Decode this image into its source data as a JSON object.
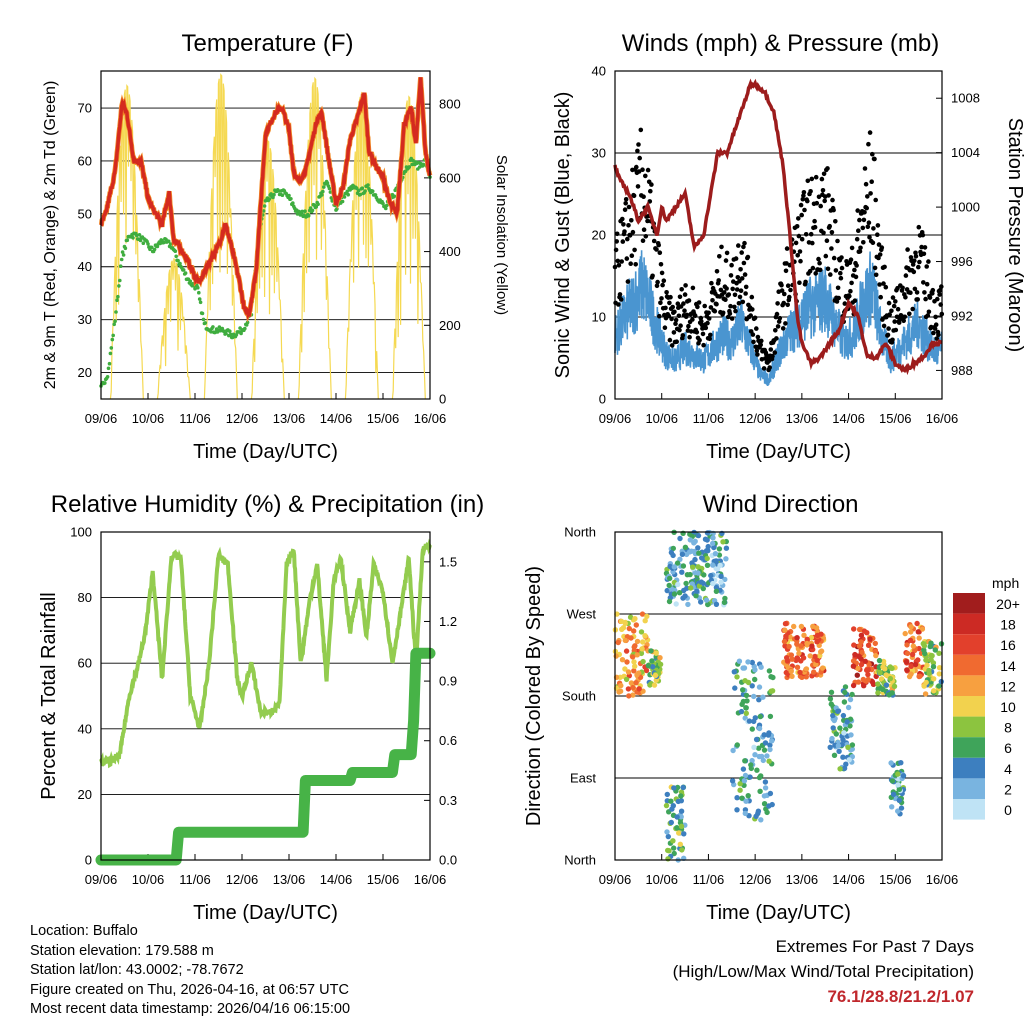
{
  "colors": {
    "temp": "#d42a1f",
    "temp_orange": "#f28c28",
    "dew": "#3fad3f",
    "solar": "#f5d952",
    "gust": "#000000",
    "wind": "#4a95d0",
    "pressure": "#9c1c1c",
    "rh": "#93cc4f",
    "rain": "#47b347",
    "grid": "#000000"
  },
  "chart_data": [
    {
      "id": "temperature",
      "type": "line",
      "title": "Temperature (F)",
      "xlabel": "Time (Day/UTC)",
      "ylabel": "2m & 9m T (Red, Orange) & 2m Td (Green)",
      "y2label": "Solar Insolation (Yellow)",
      "x_ticks": [
        "09/06",
        "10/06",
        "11/06",
        "12/06",
        "13/06",
        "14/06",
        "15/06",
        "16/06"
      ],
      "xlim": [
        0,
        7
      ],
      "ylim": [
        15,
        77
      ],
      "y_ticks": [
        20,
        30,
        40,
        50,
        60,
        70
      ],
      "y2lim": [
        0,
        890
      ],
      "y2_ticks": [
        0,
        200,
        400,
        600,
        800
      ],
      "grid": true,
      "series": [
        {
          "name": "2m T",
          "x": [
            0,
            0.1,
            0.3,
            0.45,
            0.55,
            0.7,
            0.85,
            1.0,
            1.1,
            1.3,
            1.45,
            1.55,
            1.65,
            1.8,
            2.0,
            2.1,
            2.25,
            2.5,
            2.65,
            2.8,
            2.95,
            3.05,
            3.15,
            3.3,
            3.5,
            3.7,
            3.85,
            4.0,
            4.1,
            4.2,
            4.35,
            4.45,
            4.6,
            4.7,
            4.85,
            5.0,
            5.15,
            5.3,
            5.45,
            5.6,
            5.7,
            5.85,
            6.0,
            6.15,
            6.3,
            6.45,
            6.6,
            6.7,
            6.8,
            6.9,
            7.0
          ],
          "values": [
            48,
            50,
            58,
            71,
            69,
            60,
            60,
            53,
            51,
            48,
            54,
            45,
            44,
            42,
            38,
            37,
            40,
            44,
            48,
            43,
            37,
            32,
            31,
            39,
            65,
            69,
            70,
            66,
            58,
            56,
            58,
            62,
            68,
            69,
            60,
            52,
            55,
            64,
            68,
            73,
            62,
            59,
            57,
            52,
            50,
            67,
            70,
            63,
            76,
            62,
            57
          ]
        },
        {
          "name": "2m Td",
          "x": [
            0,
            0.15,
            0.3,
            0.45,
            0.6,
            0.75,
            0.9,
            1.1,
            1.3,
            1.5,
            1.7,
            1.9,
            2.05,
            2.2,
            2.4,
            2.6,
            2.8,
            3.0,
            3.2,
            3.35,
            3.5,
            3.7,
            3.9,
            4.0,
            4.2,
            4.4,
            4.6,
            4.8,
            5.0,
            5.15,
            5.35,
            5.5,
            5.7,
            5.9,
            6.05,
            6.25,
            6.45,
            6.6,
            6.75,
            6.9,
            7.0
          ],
          "values": [
            17,
            20,
            30,
            42,
            46,
            46,
            45,
            43,
            45,
            44,
            40,
            37,
            36,
            29,
            28,
            28,
            27,
            28,
            31,
            46,
            52,
            54,
            54,
            53,
            50,
            50,
            52,
            56,
            51,
            53,
            55,
            54,
            55,
            53,
            51,
            54,
            58,
            60,
            59,
            60,
            57
          ]
        }
      ],
      "solar_peaks_day": [
        0.55,
        1.55,
        2.55,
        3.55,
        4.55,
        5.55,
        6.55
      ],
      "solar_peak_values": [
        850,
        380,
        880,
        700,
        870,
        830,
        820
      ]
    },
    {
      "id": "winds",
      "type": "scatter",
      "title": "Winds (mph) & Pressure (mb)",
      "xlabel": "Time (Day/UTC)",
      "ylabel": "Sonic Wind & Gust (Blue, Black)",
      "y2label": "Station Pressure (Maroon)",
      "x_ticks": [
        "09/06",
        "10/06",
        "11/06",
        "12/06",
        "13/06",
        "14/06",
        "15/06",
        "16/06"
      ],
      "xlim": [
        0,
        7
      ],
      "ylim": [
        0,
        40
      ],
      "y_ticks": [
        0,
        10,
        20,
        30,
        40
      ],
      "y2lim": [
        985.9,
        1010
      ],
      "y2_ticks": [
        988,
        992,
        996,
        1000,
        1004,
        1008
      ],
      "grid": true,
      "wind_envelope": {
        "x": [
          0,
          0.3,
          0.6,
          0.9,
          1.1,
          1.3,
          1.5,
          1.7,
          1.9,
          2.1,
          2.3,
          2.5,
          2.7,
          2.9,
          3.1,
          3.3,
          3.5,
          3.7,
          3.9,
          4.1,
          4.3,
          4.5,
          4.7,
          4.9,
          5.1,
          5.3,
          5.5,
          5.7,
          5.9,
          6.1,
          6.3,
          6.5,
          6.7,
          6.9,
          7.0
        ],
        "values": [
          10,
          14,
          18,
          11,
          7,
          6,
          8,
          7,
          6,
          8,
          10,
          9,
          12,
          8,
          4,
          3,
          7,
          10,
          12,
          14,
          15,
          16,
          12,
          9,
          10,
          15,
          18,
          10,
          6,
          8,
          10,
          12,
          9,
          7,
          8
        ]
      },
      "pressure": {
        "x": [
          0,
          0.1,
          0.3,
          0.5,
          0.7,
          0.9,
          1.0,
          1.1,
          1.3,
          1.5,
          1.7,
          1.9,
          2.05,
          2.2,
          2.4,
          2.6,
          2.8,
          2.9,
          3.0,
          3.2,
          3.4,
          3.6,
          3.8,
          3.9,
          4.0,
          4.2,
          4.4,
          4.6,
          4.8,
          5.0,
          5.2,
          5.4,
          5.6,
          5.8,
          6.0,
          6.2,
          6.4,
          6.6,
          6.8,
          7.0
        ],
        "values": [
          1003,
          1002,
          1001,
          999,
          1000,
          998,
          1000,
          999,
          1000,
          1001,
          997,
          998,
          1001,
          1004,
          1004,
          1006,
          1008,
          1009,
          1009,
          1008.5,
          1007,
          1003,
          996,
          992,
          990,
          988.5,
          989,
          990,
          991,
          993,
          992,
          989,
          989,
          990,
          988.5,
          988,
          988.5,
          989,
          990,
          990
        ]
      }
    },
    {
      "id": "humidity",
      "type": "line",
      "title": "Relative Humidity (%) & Precipitation (in)",
      "xlabel": "Time (Day/UTC)",
      "ylabel": "Percent & Total Rainfall",
      "x_ticks": [
        "09/06",
        "10/06",
        "11/06",
        "12/06",
        "13/06",
        "14/06",
        "15/06",
        "16/06"
      ],
      "xlim": [
        0,
        7
      ],
      "ylim": [
        0,
        100
      ],
      "y_ticks": [
        0,
        20,
        40,
        60,
        80,
        100
      ],
      "y2lim": [
        0,
        1.65
      ],
      "y2_ticks": [
        "0.0",
        "0.3",
        "0.6",
        "0.9",
        "1.2",
        "1.5"
      ],
      "grid": true,
      "series": [
        {
          "name": "Relative Humidity",
          "x": [
            0,
            0.2,
            0.4,
            0.6,
            0.8,
            0.95,
            1.1,
            1.3,
            1.5,
            1.7,
            1.9,
            2.1,
            2.3,
            2.5,
            2.7,
            2.9,
            3.0,
            3.2,
            3.4,
            3.6,
            3.8,
            3.95,
            4.1,
            4.25,
            4.45,
            4.6,
            4.8,
            4.95,
            5.1,
            5.3,
            5.5,
            5.65,
            5.8,
            6.0,
            6.2,
            6.4,
            6.55,
            6.7,
            6.85,
            7.0
          ],
          "values": [
            30,
            30,
            32,
            50,
            60,
            70,
            88,
            55,
            93,
            92,
            50,
            40,
            60,
            93,
            90,
            55,
            50,
            60,
            45,
            45,
            48,
            90,
            95,
            60,
            80,
            90,
            55,
            85,
            92,
            70,
            85,
            68,
            90,
            82,
            60,
            78,
            92,
            60,
            95,
            96
          ]
        },
        {
          "name": "Total Rainfall",
          "x": [
            0,
            1.6,
            1.65,
            4.3,
            4.35,
            5.3,
            5.35,
            6.2,
            6.25,
            6.6,
            6.65,
            6.7,
            7.0
          ],
          "values": [
            0,
            0,
            0.14,
            0.14,
            0.4,
            0.4,
            0.44,
            0.44,
            0.53,
            0.53,
            0.7,
            1.04,
            1.04
          ]
        }
      ]
    },
    {
      "id": "wind_direction",
      "type": "scatter",
      "title": "Wind Direction",
      "xlabel": "Time (Day/UTC)",
      "ylabel": "Direction (Colored By Speed)",
      "x_ticks": [
        "09/06",
        "10/06",
        "11/06",
        "12/06",
        "13/06",
        "14/06",
        "15/06",
        "16/06"
      ],
      "xlim": [
        0,
        7
      ],
      "y_ticks": [
        "North",
        "East",
        "South",
        "West",
        "North"
      ],
      "ylim": [
        0,
        360
      ],
      "grid": true,
      "clusters": [
        {
          "x0": 0.0,
          "x1": 0.7,
          "d0": 180,
          "d1": 270,
          "speed": 12
        },
        {
          "x0": 0.7,
          "x1": 1.0,
          "d0": 190,
          "d1": 230,
          "speed": 8
        },
        {
          "x0": 1.1,
          "x1": 1.5,
          "d0": 0,
          "d1": 80,
          "speed": 6
        },
        {
          "x0": 1.1,
          "x1": 2.4,
          "d0": 280,
          "d1": 360,
          "speed": 4
        },
        {
          "x0": 2.5,
          "x1": 3.4,
          "d0": 40,
          "d1": 220,
          "speed": 4
        },
        {
          "x0": 3.6,
          "x1": 4.5,
          "d0": 200,
          "d1": 260,
          "speed": 14
        },
        {
          "x0": 4.6,
          "x1": 5.1,
          "d0": 100,
          "d1": 190,
          "speed": 4
        },
        {
          "x0": 5.1,
          "x1": 5.6,
          "d0": 190,
          "d1": 255,
          "speed": 16
        },
        {
          "x0": 5.6,
          "x1": 6.0,
          "d0": 180,
          "d1": 220,
          "speed": 8
        },
        {
          "x0": 5.9,
          "x1": 6.2,
          "d0": 50,
          "d1": 110,
          "speed": 4
        },
        {
          "x0": 6.2,
          "x1": 6.6,
          "d0": 200,
          "d1": 260,
          "speed": 14
        },
        {
          "x0": 6.6,
          "x1": 7.0,
          "d0": 180,
          "d1": 240,
          "speed": 8
        }
      ],
      "colorbar_title": "mph",
      "colorbar_labels": [
        "20+",
        "18",
        "16",
        "14",
        "12",
        "10",
        "8",
        "6",
        "4",
        "2",
        "0"
      ],
      "colorbar_colors": [
        "#a11d1d",
        "#cc2a24",
        "#e2402c",
        "#f06a30",
        "#f7a040",
        "#f2d24e",
        "#8cc43f",
        "#3fa45a",
        "#3d7fbf",
        "#79b4e0",
        "#bfe3f5"
      ]
    }
  ],
  "footer": {
    "location": "Location: Buffalo",
    "elevation": "Station elevation: 179.588 m",
    "latlon": "Station lat/lon: 43.0002; -78.7672",
    "created": "Figure created on Thu, 2026-04-16, at 06:57 UTC",
    "recent": "Most recent data timestamp: 2026/04/16 06:15:00"
  },
  "extremes": {
    "title": "Extremes For Past 7 Days",
    "subtitle": "(High/Low/Max Wind/Total Precipitation)",
    "values": "76.1/28.8/21.2/1.07"
  }
}
